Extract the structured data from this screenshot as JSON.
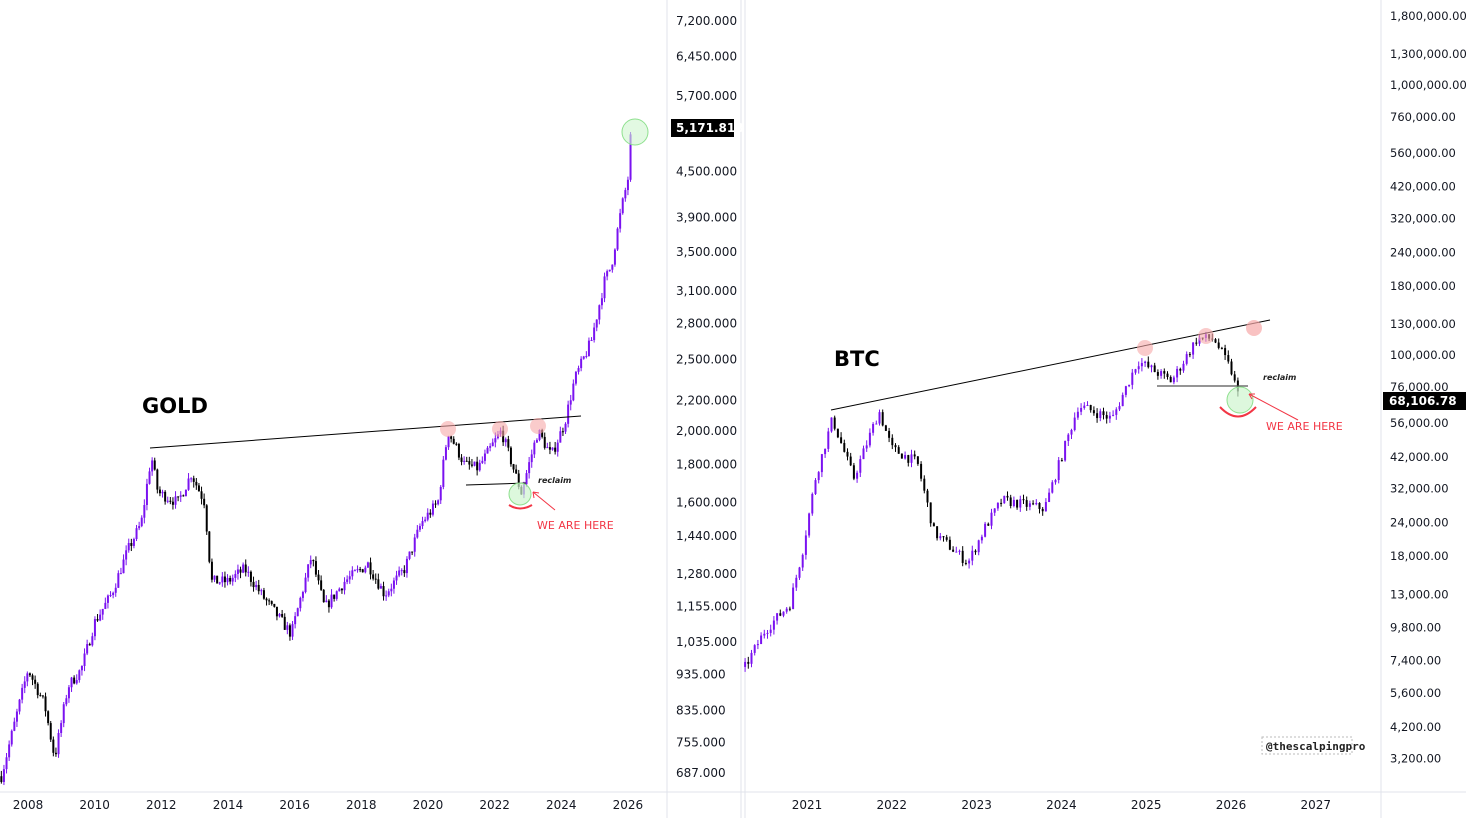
{
  "colors": {
    "up": "#7a12f0",
    "down": "#000000",
    "annotation": "#f23645",
    "resistance_circle": "#f7a8a8",
    "support_circle": "#b6f0b6",
    "axis_border": "#e0e3eb"
  },
  "chart_data": [
    {
      "type": "candlestick",
      "title": "GOLD",
      "y_scale": "log",
      "current_price_label": "5,171.818",
      "annotations": {
        "reclaim": "reclaim",
        "we_are_here": "WE ARE HERE"
      },
      "x_ticks": [
        {
          "v": 2008,
          "label": "2008"
        },
        {
          "v": 2010,
          "label": "2010"
        },
        {
          "v": 2012,
          "label": "2012"
        },
        {
          "v": 2014,
          "label": "2014"
        },
        {
          "v": 2016,
          "label": "2016"
        },
        {
          "v": 2018,
          "label": "2018"
        },
        {
          "v": 2020,
          "label": "2020"
        },
        {
          "v": 2022,
          "label": "2022"
        },
        {
          "v": 2024,
          "label": "2024"
        },
        {
          "v": 2026,
          "label": "2026"
        }
      ],
      "y_ticks": [
        {
          "v": 7200,
          "label": "7,200.000"
        },
        {
          "v": 6450,
          "label": "6,450.000"
        },
        {
          "v": 5700,
          "label": "5,700.000"
        },
        {
          "v": 4500,
          "label": "4,500.000"
        },
        {
          "v": 3900,
          "label": "3,900.000"
        },
        {
          "v": 3500,
          "label": "3,500.000"
        },
        {
          "v": 3100,
          "label": "3,100.000"
        },
        {
          "v": 2800,
          "label": "2,800.000"
        },
        {
          "v": 2500,
          "label": "2,500.000"
        },
        {
          "v": 2200,
          "label": "2,200.000"
        },
        {
          "v": 2000,
          "label": "2,000.000"
        },
        {
          "v": 1800,
          "label": "1,800.000"
        },
        {
          "v": 1600,
          "label": "1,600.000"
        },
        {
          "v": 1440,
          "label": "1,440.000"
        },
        {
          "v": 1280,
          "label": "1,280.000"
        },
        {
          "v": 1155,
          "label": "1,155.000"
        },
        {
          "v": 1035,
          "label": "1,035.000"
        },
        {
          "v": 935,
          "label": "935.000"
        },
        {
          "v": 835,
          "label": "835.000"
        },
        {
          "v": 755,
          "label": "755.000"
        },
        {
          "v": 687,
          "label": "687.000"
        }
      ],
      "price_path": [
        [
          2007.2,
          680
        ],
        [
          2008.0,
          950
        ],
        [
          2008.5,
          850
        ],
        [
          2008.8,
          720
        ],
        [
          2009.2,
          900
        ],
        [
          2009.6,
          950
        ],
        [
          2010.0,
          1100
        ],
        [
          2010.5,
          1200
        ],
        [
          2011.0,
          1380
        ],
        [
          2011.4,
          1500
        ],
        [
          2011.7,
          1850
        ],
        [
          2011.9,
          1650
        ],
        [
          2012.5,
          1600
        ],
        [
          2012.9,
          1750
        ],
        [
          2013.3,
          1600
        ],
        [
          2013.5,
          1250
        ],
        [
          2014.0,
          1250
        ],
        [
          2014.5,
          1300
        ],
        [
          2015.0,
          1200
        ],
        [
          2015.9,
          1060
        ],
        [
          2016.5,
          1350
        ],
        [
          2016.9,
          1150
        ],
        [
          2017.5,
          1250
        ],
        [
          2018.2,
          1320
        ],
        [
          2018.7,
          1200
        ],
        [
          2019.3,
          1300
        ],
        [
          2019.8,
          1500
        ],
        [
          2020.3,
          1600
        ],
        [
          2020.6,
          2000
        ],
        [
          2021.1,
          1800
        ],
        [
          2021.5,
          1780
        ],
        [
          2022.2,
          2000
        ],
        [
          2022.8,
          1650
        ],
        [
          2023.3,
          2000
        ],
        [
          2023.7,
          1850
        ],
        [
          2024.1,
          2050
        ],
        [
          2024.4,
          2350
        ],
        [
          2024.9,
          2650
        ],
        [
          2025.3,
          3200
        ],
        [
          2025.5,
          3350
        ],
        [
          2025.8,
          4000
        ],
        [
          2026.0,
          4400
        ],
        [
          2026.1,
          5171.818
        ]
      ]
    },
    {
      "type": "candlestick",
      "title": "BTC",
      "y_scale": "log",
      "current_price_label": "68,106.78",
      "annotations": {
        "reclaim": "reclaim",
        "we_are_here": "WE ARE HERE",
        "watermark": "@thescalpingpro"
      },
      "x_ticks": [
        {
          "v": 2021,
          "label": "2021"
        },
        {
          "v": 2022,
          "label": "2022"
        },
        {
          "v": 2023,
          "label": "2023"
        },
        {
          "v": 2024,
          "label": "2024"
        },
        {
          "v": 2025,
          "label": "2025"
        },
        {
          "v": 2026,
          "label": "2026"
        },
        {
          "v": 2027,
          "label": "2027"
        }
      ],
      "y_ticks": [
        {
          "v": 1800000,
          "label": "1,800,000.00"
        },
        {
          "v": 1300000,
          "label": "1,300,000.00"
        },
        {
          "v": 1000000,
          "label": "1,000,000.00"
        },
        {
          "v": 760000,
          "label": "760,000.00"
        },
        {
          "v": 560000,
          "label": "560,000.00"
        },
        {
          "v": 420000,
          "label": "420,000.00"
        },
        {
          "v": 320000,
          "label": "320,000.00"
        },
        {
          "v": 240000,
          "label": "240,000.00"
        },
        {
          "v": 180000,
          "label": "180,000.00"
        },
        {
          "v": 130000,
          "label": "130,000.00"
        },
        {
          "v": 100000,
          "label": "100,000.00"
        },
        {
          "v": 76000,
          "label": "76,000.00"
        },
        {
          "v": 56000,
          "label": "56,000.00"
        },
        {
          "v": 42000,
          "label": "42,000.00"
        },
        {
          "v": 32000,
          "label": "32,000.00"
        },
        {
          "v": 24000,
          "label": "24,000.00"
        },
        {
          "v": 18000,
          "label": "18,000.00"
        },
        {
          "v": 13000,
          "label": "13,000.00"
        },
        {
          "v": 9800,
          "label": "9,800.00"
        },
        {
          "v": 7400,
          "label": "7,400.00"
        },
        {
          "v": 5600,
          "label": "5,600.00"
        },
        {
          "v": 4200,
          "label": "4,200.00"
        },
        {
          "v": 3200,
          "label": "3,200.00"
        }
      ],
      "price_path": [
        [
          2020.27,
          7000
        ],
        [
          2020.5,
          9500
        ],
        [
          2020.8,
          12000
        ],
        [
          2020.95,
          19000
        ],
        [
          2021.1,
          35000
        ],
        [
          2021.3,
          58000
        ],
        [
          2021.55,
          35000
        ],
        [
          2021.85,
          62000
        ],
        [
          2022.0,
          45000
        ],
        [
          2022.3,
          40000
        ],
        [
          2022.5,
          22000
        ],
        [
          2022.9,
          17000
        ],
        [
          2023.1,
          23000
        ],
        [
          2023.3,
          29000
        ],
        [
          2023.8,
          27000
        ],
        [
          2024.2,
          65000
        ],
        [
          2024.6,
          58000
        ],
        [
          2024.9,
          95000
        ],
        [
          2025.3,
          80000
        ],
        [
          2025.6,
          115000
        ],
        [
          2025.8,
          115000
        ],
        [
          2026.0,
          88000
        ],
        [
          2026.1,
          68106.78
        ]
      ]
    }
  ]
}
